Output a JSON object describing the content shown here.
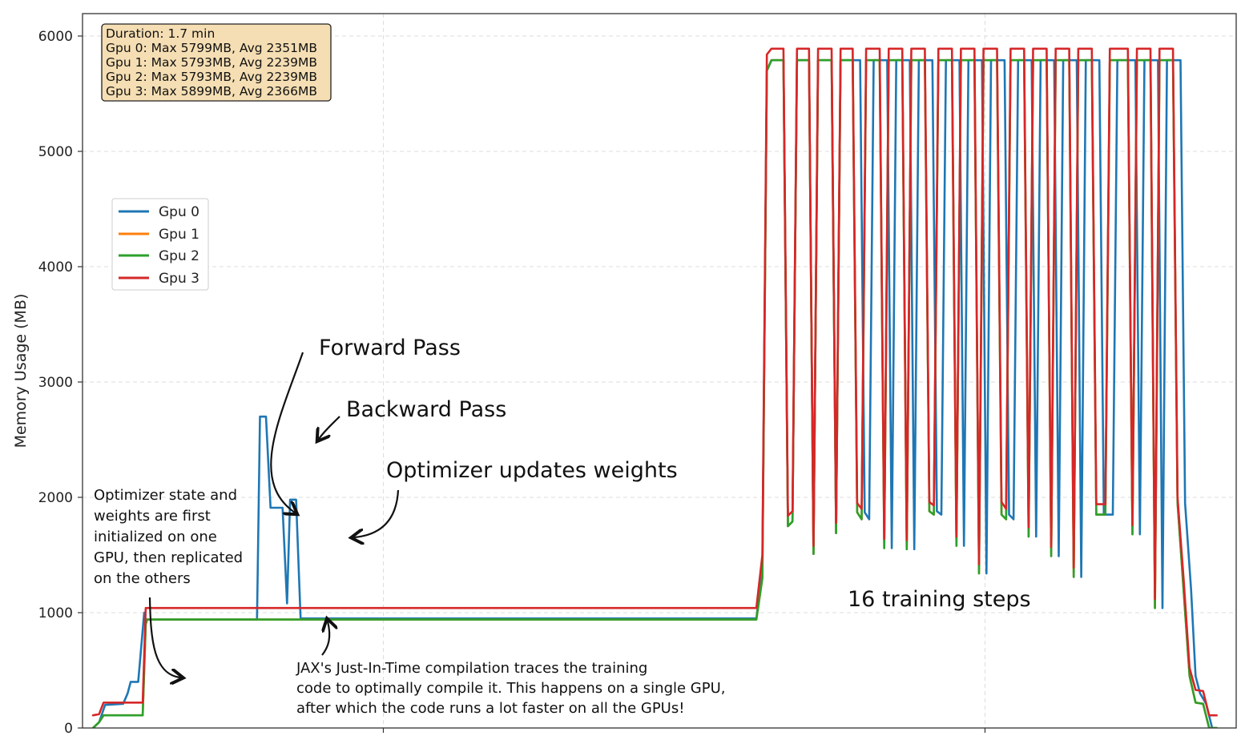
{
  "chart_data": {
    "type": "line",
    "title": "",
    "xlabel": "",
    "ylabel": "Memory Usage (MB)",
    "ylim": [
      0,
      6000
    ],
    "yticks": [
      0,
      1000,
      2000,
      3000,
      4000,
      5000,
      6000
    ],
    "grid": true,
    "legend_position": "upper-left",
    "stats_box": [
      "Duration: 1.7 min",
      "Gpu 0: Max 5799MB, Avg 2351MB",
      "Gpu 1: Max 5793MB, Avg 2239MB",
      "Gpu 2: Max 5793MB, Avg 2239MB",
      "Gpu 3: Max 5899MB, Avg 2366MB"
    ],
    "series": [
      {
        "name": "Gpu 0",
        "color": "#1f77b4",
        "points": [
          [
            0.7,
            0
          ],
          [
            1.1,
            50
          ],
          [
            1.5,
            200
          ],
          [
            2.7,
            210
          ],
          [
            3.0,
            300
          ],
          [
            3.2,
            400
          ],
          [
            3.7,
            400
          ],
          [
            4.1,
            1000
          ],
          [
            4.2,
            940
          ],
          [
            11.6,
            940
          ],
          [
            11.8,
            2700
          ],
          [
            12.2,
            2700
          ],
          [
            12.5,
            1910
          ],
          [
            13.3,
            1910
          ],
          [
            13.6,
            1080
          ],
          [
            13.8,
            1980
          ],
          [
            14.2,
            1980
          ],
          [
            14.5,
            950
          ],
          [
            44.8,
            950
          ],
          [
            45.2,
            1400
          ],
          [
            45.5,
            5700
          ],
          [
            45.8,
            5790
          ],
          [
            46.6,
            5790
          ],
          [
            46.9,
            1750
          ],
          [
            47.2,
            1790
          ],
          [
            47.5,
            5790
          ],
          [
            48.3,
            5790
          ],
          [
            48.6,
            1510
          ],
          [
            48.9,
            5790
          ],
          [
            49.8,
            5790
          ],
          [
            50.1,
            1690
          ],
          [
            50.4,
            5790
          ],
          [
            51.7,
            5790
          ],
          [
            52.0,
            1870
          ],
          [
            52.3,
            1810
          ],
          [
            52.6,
            5790
          ],
          [
            53.5,
            5790
          ],
          [
            53.8,
            1560
          ],
          [
            54.1,
            5790
          ],
          [
            55.0,
            5790
          ],
          [
            55.3,
            1550
          ],
          [
            55.6,
            5790
          ],
          [
            56.5,
            5790
          ],
          [
            56.8,
            1880
          ],
          [
            57.1,
            1850
          ],
          [
            57.4,
            5790
          ],
          [
            58.3,
            5790
          ],
          [
            58.6,
            1580
          ],
          [
            58.9,
            5790
          ],
          [
            59.8,
            5790
          ],
          [
            60.1,
            1340
          ],
          [
            60.4,
            5790
          ],
          [
            61.3,
            5790
          ],
          [
            61.6,
            1850
          ],
          [
            61.9,
            1810
          ],
          [
            62.2,
            5790
          ],
          [
            63.1,
            5790
          ],
          [
            63.4,
            1660
          ],
          [
            63.7,
            5790
          ],
          [
            64.6,
            5790
          ],
          [
            64.9,
            1490
          ],
          [
            65.2,
            5790
          ],
          [
            66.1,
            5790
          ],
          [
            66.4,
            1310
          ],
          [
            66.7,
            5790
          ],
          [
            67.6,
            5790
          ],
          [
            67.9,
            1850
          ],
          [
            68.5,
            1850
          ],
          [
            68.8,
            5790
          ],
          [
            70.0,
            5790
          ],
          [
            70.3,
            1680
          ],
          [
            70.6,
            5790
          ],
          [
            71.5,
            5790
          ],
          [
            71.8,
            1040
          ],
          [
            72.1,
            5790
          ],
          [
            73.0,
            5790
          ],
          [
            73.3,
            1950
          ],
          [
            73.7,
            1200
          ],
          [
            74.0,
            450
          ],
          [
            74.3,
            300
          ],
          [
            74.7,
            210
          ],
          [
            75.1,
            0
          ],
          [
            75.4,
            0
          ]
        ]
      },
      {
        "name": "Gpu 1",
        "color": "#ff7f0e",
        "points": [
          [
            0.7,
            0
          ],
          [
            1.1,
            50
          ],
          [
            1.4,
            110
          ],
          [
            4.0,
            110
          ],
          [
            4.2,
            900
          ],
          [
            4.3,
            940
          ],
          [
            44.8,
            940
          ],
          [
            45.2,
            1300
          ],
          [
            45.5,
            5700
          ],
          [
            45.8,
            5790
          ],
          [
            46.6,
            5790
          ],
          [
            46.9,
            1750
          ],
          [
            47.2,
            1790
          ],
          [
            47.5,
            5790
          ],
          [
            48.3,
            5790
          ],
          [
            48.6,
            1510
          ],
          [
            48.9,
            5790
          ],
          [
            49.8,
            5790
          ],
          [
            50.1,
            1690
          ],
          [
            50.4,
            5790
          ],
          [
            51.2,
            5790
          ],
          [
            51.5,
            1870
          ],
          [
            51.8,
            1810
          ],
          [
            52.1,
            5790
          ],
          [
            53.0,
            5790
          ],
          [
            53.3,
            1560
          ],
          [
            53.6,
            5790
          ],
          [
            54.5,
            5790
          ],
          [
            54.8,
            1550
          ],
          [
            55.1,
            5790
          ],
          [
            56.0,
            5790
          ],
          [
            56.3,
            1880
          ],
          [
            56.6,
            1850
          ],
          [
            56.9,
            5790
          ],
          [
            57.8,
            5790
          ],
          [
            58.1,
            1580
          ],
          [
            58.4,
            5790
          ],
          [
            59.3,
            5790
          ],
          [
            59.6,
            1340
          ],
          [
            59.9,
            5790
          ],
          [
            60.8,
            5790
          ],
          [
            61.1,
            1850
          ],
          [
            61.4,
            1810
          ],
          [
            61.7,
            5790
          ],
          [
            62.6,
            5790
          ],
          [
            62.9,
            1660
          ],
          [
            63.2,
            5790
          ],
          [
            64.1,
            5790
          ],
          [
            64.4,
            1490
          ],
          [
            64.7,
            5790
          ],
          [
            65.6,
            5790
          ],
          [
            65.9,
            1310
          ],
          [
            66.2,
            5790
          ],
          [
            67.1,
            5790
          ],
          [
            67.4,
            1850
          ],
          [
            68.0,
            1850
          ],
          [
            68.3,
            5790
          ],
          [
            69.5,
            5790
          ],
          [
            69.8,
            1680
          ],
          [
            70.1,
            5790
          ],
          [
            71.0,
            5790
          ],
          [
            71.3,
            1040
          ],
          [
            71.6,
            5790
          ],
          [
            72.5,
            5790
          ],
          [
            72.8,
            1950
          ],
          [
            73.2,
            1200
          ],
          [
            73.6,
            450
          ],
          [
            74.0,
            220
          ],
          [
            74.5,
            210
          ],
          [
            74.9,
            0
          ],
          [
            75.4,
            0
          ]
        ]
      },
      {
        "name": "Gpu 2",
        "color": "#2ca02c",
        "points": [
          [
            0.7,
            0
          ],
          [
            1.1,
            50
          ],
          [
            1.4,
            110
          ],
          [
            4.0,
            110
          ],
          [
            4.2,
            900
          ],
          [
            4.3,
            940
          ],
          [
            44.8,
            940
          ],
          [
            45.2,
            1300
          ],
          [
            45.5,
            5700
          ],
          [
            45.8,
            5790
          ],
          [
            46.6,
            5790
          ],
          [
            46.9,
            1750
          ],
          [
            47.2,
            1790
          ],
          [
            47.5,
            5790
          ],
          [
            48.3,
            5790
          ],
          [
            48.6,
            1510
          ],
          [
            48.9,
            5790
          ],
          [
            49.8,
            5790
          ],
          [
            50.1,
            1690
          ],
          [
            50.4,
            5790
          ],
          [
            51.2,
            5790
          ],
          [
            51.5,
            1870
          ],
          [
            51.8,
            1810
          ],
          [
            52.1,
            5790
          ],
          [
            53.0,
            5790
          ],
          [
            53.3,
            1560
          ],
          [
            53.6,
            5790
          ],
          [
            54.5,
            5790
          ],
          [
            54.8,
            1550
          ],
          [
            55.1,
            5790
          ],
          [
            56.0,
            5790
          ],
          [
            56.3,
            1880
          ],
          [
            56.6,
            1850
          ],
          [
            56.9,
            5790
          ],
          [
            57.8,
            5790
          ],
          [
            58.1,
            1580
          ],
          [
            58.4,
            5790
          ],
          [
            59.3,
            5790
          ],
          [
            59.6,
            1340
          ],
          [
            59.9,
            5790
          ],
          [
            60.8,
            5790
          ],
          [
            61.1,
            1850
          ],
          [
            61.4,
            1810
          ],
          [
            61.7,
            5790
          ],
          [
            62.6,
            5790
          ],
          [
            62.9,
            1660
          ],
          [
            63.2,
            5790
          ],
          [
            64.1,
            5790
          ],
          [
            64.4,
            1490
          ],
          [
            64.7,
            5790
          ],
          [
            65.6,
            5790
          ],
          [
            65.9,
            1310
          ],
          [
            66.2,
            5790
          ],
          [
            67.1,
            5790
          ],
          [
            67.4,
            1850
          ],
          [
            68.0,
            1850
          ],
          [
            68.3,
            5790
          ],
          [
            69.5,
            5790
          ],
          [
            69.8,
            1680
          ],
          [
            70.1,
            5790
          ],
          [
            71.0,
            5790
          ],
          [
            71.3,
            1040
          ],
          [
            71.6,
            5790
          ],
          [
            72.5,
            5790
          ],
          [
            72.8,
            1950
          ],
          [
            73.2,
            1200
          ],
          [
            73.6,
            450
          ],
          [
            74.0,
            220
          ],
          [
            74.5,
            210
          ],
          [
            74.9,
            0
          ],
          [
            75.4,
            0
          ]
        ]
      },
      {
        "name": "Gpu 3",
        "color": "#d62728",
        "points": [
          [
            0.7,
            110
          ],
          [
            1.1,
            120
          ],
          [
            1.4,
            220
          ],
          [
            4.0,
            220
          ],
          [
            4.2,
            1040
          ],
          [
            44.8,
            1040
          ],
          [
            45.2,
            1500
          ],
          [
            45.5,
            5840
          ],
          [
            45.8,
            5890
          ],
          [
            46.6,
            5890
          ],
          [
            46.9,
            1840
          ],
          [
            47.2,
            1880
          ],
          [
            47.5,
            5890
          ],
          [
            48.3,
            5890
          ],
          [
            48.6,
            1580
          ],
          [
            48.9,
            5890
          ],
          [
            49.8,
            5890
          ],
          [
            50.1,
            1780
          ],
          [
            50.4,
            5890
          ],
          [
            51.2,
            5890
          ],
          [
            51.5,
            1950
          ],
          [
            51.8,
            1900
          ],
          [
            52.1,
            5890
          ],
          [
            53.0,
            5890
          ],
          [
            53.3,
            1640
          ],
          [
            53.6,
            5890
          ],
          [
            54.5,
            5890
          ],
          [
            54.8,
            1630
          ],
          [
            55.1,
            5890
          ],
          [
            56.0,
            5890
          ],
          [
            56.3,
            1960
          ],
          [
            56.6,
            1930
          ],
          [
            56.9,
            5890
          ],
          [
            57.8,
            5890
          ],
          [
            58.1,
            1660
          ],
          [
            58.4,
            5890
          ],
          [
            59.3,
            5890
          ],
          [
            59.6,
            1420
          ],
          [
            59.9,
            5890
          ],
          [
            60.8,
            5890
          ],
          [
            61.1,
            1960
          ],
          [
            61.4,
            1900
          ],
          [
            61.7,
            5890
          ],
          [
            62.6,
            5890
          ],
          [
            62.9,
            1740
          ],
          [
            63.2,
            5890
          ],
          [
            64.1,
            5890
          ],
          [
            64.4,
            1570
          ],
          [
            64.7,
            5890
          ],
          [
            65.6,
            5890
          ],
          [
            65.9,
            1390
          ],
          [
            66.2,
            5890
          ],
          [
            67.1,
            5890
          ],
          [
            67.4,
            1940
          ],
          [
            68.0,
            1940
          ],
          [
            68.3,
            5890
          ],
          [
            69.5,
            5890
          ],
          [
            69.8,
            1760
          ],
          [
            70.1,
            5890
          ],
          [
            71.0,
            5890
          ],
          [
            71.3,
            1120
          ],
          [
            71.6,
            5890
          ],
          [
            72.5,
            5890
          ],
          [
            72.8,
            2000
          ],
          [
            73.2,
            1300
          ],
          [
            73.6,
            520
          ],
          [
            74.0,
            330
          ],
          [
            74.5,
            320
          ],
          [
            74.9,
            110
          ],
          [
            75.4,
            110
          ]
        ]
      }
    ],
    "annotations": {
      "forward_pass": "Forward Pass",
      "backward_pass": "Backward Pass",
      "optimizer_updates": "Optimizer updates weights",
      "optimizer_init": [
        "Optimizer state and",
        "weights are first",
        "initialized on one",
        "GPU, then replicated",
        "on the others"
      ],
      "training_steps": "16 training steps",
      "jax_jit": [
        "JAX's Just-In-Time compilation traces the training",
        "code to optimally compile it. This happens on a single GPU,",
        "after which the code runs a lot faster on all the GPUs!"
      ]
    }
  }
}
